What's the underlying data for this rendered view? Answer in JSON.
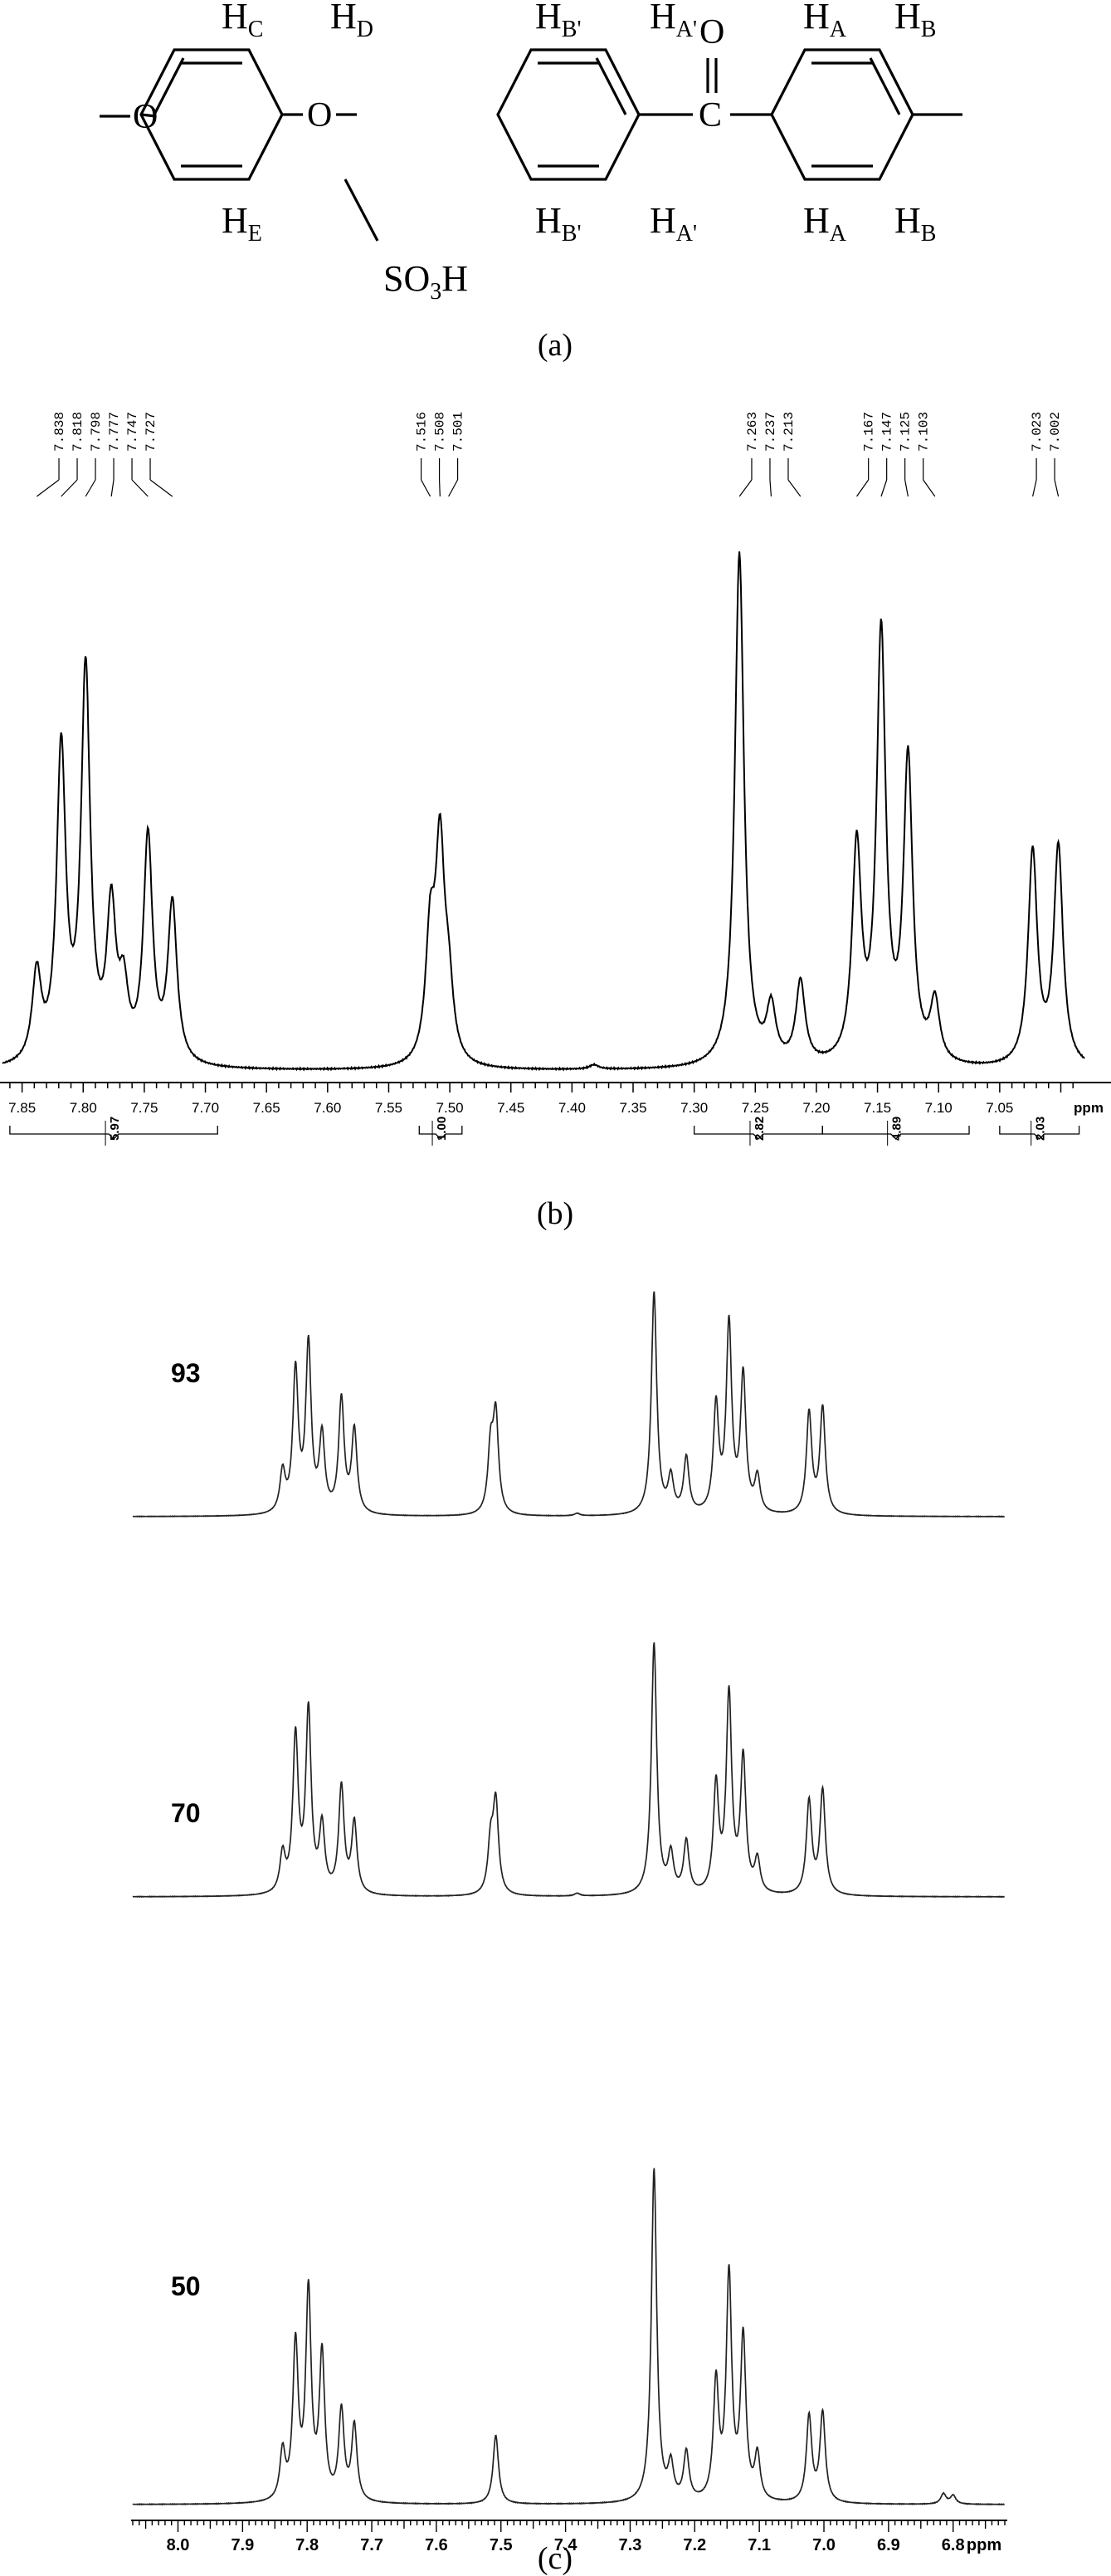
{
  "structure": {
    "labels": {
      "HC": {
        "main": "H",
        "sub": "C"
      },
      "HD": {
        "main": "H",
        "sub": "D"
      },
      "HE": {
        "main": "H",
        "sub": "E"
      },
      "HB_prime_top": {
        "main": "H",
        "sub": "B'"
      },
      "HA_prime_top": {
        "main": "H",
        "sub": "A'"
      },
      "HB_prime_bottom": {
        "main": "H",
        "sub": "B'"
      },
      "HA_prime_bottom": {
        "main": "H",
        "sub": "A'"
      },
      "HA_top": {
        "main": "H",
        "sub": "A"
      },
      "HB_top": {
        "main": "H",
        "sub": "B"
      },
      "HA_bottom": {
        "main": "H",
        "sub": "A"
      },
      "HB_bottom": {
        "main": "H",
        "sub": "B"
      },
      "O_ether_left": "O",
      "O_ether_mid": "O",
      "O_carbonyl": "O",
      "C_carbonyl": "C",
      "sulfonic": {
        "a": "SO",
        "sub": "3",
        "b": "H"
      }
    }
  },
  "panel_labels": {
    "a": "(a)",
    "b": "(b)",
    "c": "(c)"
  },
  "chart_data": [
    {
      "type": "line",
      "panel": "(b)",
      "xlabel": "ppm",
      "xlim": [
        7.85,
        6.99
      ],
      "x_reversed": true,
      "xticks": [
        7.85,
        7.8,
        7.75,
        7.7,
        7.65,
        7.6,
        7.55,
        7.5,
        7.45,
        7.4,
        7.35,
        7.3,
        7.25,
        7.2,
        7.15,
        7.1,
        7.05
      ],
      "xtick_labels": [
        "7.85",
        "7.80",
        "7.75",
        "7.70",
        "7.65",
        "7.60",
        "7.55",
        "7.50",
        "7.45",
        "7.40",
        "7.35",
        "7.30",
        "7.25",
        "7.20",
        "7.15",
        "7.10",
        "7.05"
      ],
      "peak_labels": [
        "7.838",
        "7.818",
        "7.798",
        "7.777",
        "7.747",
        "7.727",
        "7.516",
        "7.508",
        "7.501",
        "7.263",
        "7.237",
        "7.213",
        "7.167",
        "7.147",
        "7.125",
        "7.103",
        "7.023",
        "7.002"
      ],
      "peaks": [
        {
          "ppm": 7.838,
          "height": 0.16
        },
        {
          "ppm": 7.818,
          "height": 0.57
        },
        {
          "ppm": 7.798,
          "height": 0.71
        },
        {
          "ppm": 7.777,
          "height": 0.27
        },
        {
          "ppm": 7.767,
          "height": 0.12
        },
        {
          "ppm": 7.747,
          "height": 0.41
        },
        {
          "ppm": 7.727,
          "height": 0.29
        },
        {
          "ppm": 7.516,
          "height": 0.22
        },
        {
          "ppm": 7.508,
          "height": 0.38
        },
        {
          "ppm": 7.501,
          "height": 0.12
        },
        {
          "ppm": 7.382,
          "height": 0.008
        },
        {
          "ppm": 7.263,
          "height": 0.94
        },
        {
          "ppm": 7.237,
          "height": 0.1
        },
        {
          "ppm": 7.213,
          "height": 0.15
        },
        {
          "ppm": 7.167,
          "height": 0.39
        },
        {
          "ppm": 7.147,
          "height": 0.78
        },
        {
          "ppm": 7.125,
          "height": 0.55
        },
        {
          "ppm": 7.103,
          "height": 0.11
        },
        {
          "ppm": 7.023,
          "height": 0.39
        },
        {
          "ppm": 7.002,
          "height": 0.4
        }
      ],
      "linewidth_ppm": 0.0045,
      "integrals": [
        {
          "from": 7.86,
          "to": 7.69,
          "value": "5.97"
        },
        {
          "from": 7.525,
          "to": 7.49,
          "value": "1.00"
        },
        {
          "from": 7.3,
          "to": 7.195,
          "value": "2.82"
        },
        {
          "from": 7.195,
          "to": 7.075,
          "value": "4.89"
        },
        {
          "from": 7.05,
          "to": 6.985,
          "value": "2.03"
        }
      ]
    },
    {
      "type": "line",
      "panel": "(c)",
      "xlabel": "ppm",
      "xlim": [
        8.07,
        6.72
      ],
      "x_reversed": true,
      "xticks": [
        8.0,
        7.9,
        7.8,
        7.7,
        7.6,
        7.5,
        7.4,
        7.3,
        7.2,
        7.1,
        7.0,
        6.9,
        6.8
      ],
      "xtick_labels": [
        "8.0",
        "7.9",
        "7.8",
        "7.7",
        "7.6",
        "7.5",
        "7.4",
        "7.3",
        "7.2",
        "7.1",
        "7.0",
        "6.9",
        "6.8"
      ],
      "linewidth_ppm": 0.005,
      "series": [
        {
          "name": "93",
          "peaks": [
            {
              "ppm": 7.838,
              "height": 0.16
            },
            {
              "ppm": 7.818,
              "height": 0.56
            },
            {
              "ppm": 7.798,
              "height": 0.66
            },
            {
              "ppm": 7.777,
              "height": 0.3
            },
            {
              "ppm": 7.747,
              "height": 0.45
            },
            {
              "ppm": 7.727,
              "height": 0.33
            },
            {
              "ppm": 7.516,
              "height": 0.25
            },
            {
              "ppm": 7.508,
              "height": 0.38
            },
            {
              "ppm": 7.382,
              "height": 0.01
            },
            {
              "ppm": 7.263,
              "height": 0.88
            },
            {
              "ppm": 7.237,
              "height": 0.14
            },
            {
              "ppm": 7.213,
              "height": 0.22
            },
            {
              "ppm": 7.167,
              "height": 0.42
            },
            {
              "ppm": 7.147,
              "height": 0.74
            },
            {
              "ppm": 7.125,
              "height": 0.54
            },
            {
              "ppm": 7.103,
              "height": 0.14
            },
            {
              "ppm": 7.023,
              "height": 0.4
            },
            {
              "ppm": 7.002,
              "height": 0.42
            }
          ]
        },
        {
          "name": "70",
          "peaks": [
            {
              "ppm": 7.838,
              "height": 0.14
            },
            {
              "ppm": 7.818,
              "height": 0.57
            },
            {
              "ppm": 7.798,
              "height": 0.66
            },
            {
              "ppm": 7.777,
              "height": 0.24
            },
            {
              "ppm": 7.747,
              "height": 0.39
            },
            {
              "ppm": 7.727,
              "height": 0.26
            },
            {
              "ppm": 7.516,
              "height": 0.18
            },
            {
              "ppm": 7.508,
              "height": 0.33
            },
            {
              "ppm": 7.382,
              "height": 0.01
            },
            {
              "ppm": 7.263,
              "height": 0.92
            },
            {
              "ppm": 7.237,
              "height": 0.14
            },
            {
              "ppm": 7.213,
              "height": 0.19
            },
            {
              "ppm": 7.167,
              "height": 0.39
            },
            {
              "ppm": 7.147,
              "height": 0.72
            },
            {
              "ppm": 7.125,
              "height": 0.49
            },
            {
              "ppm": 7.103,
              "height": 0.12
            },
            {
              "ppm": 7.023,
              "height": 0.34
            },
            {
              "ppm": 7.002,
              "height": 0.38
            }
          ]
        },
        {
          "name": "50",
          "peaks": [
            {
              "ppm": 7.838,
              "height": 0.14
            },
            {
              "ppm": 7.818,
              "height": 0.45
            },
            {
              "ppm": 7.798,
              "height": 0.6
            },
            {
              "ppm": 7.777,
              "height": 0.42
            },
            {
              "ppm": 7.747,
              "height": 0.26
            },
            {
              "ppm": 7.727,
              "height": 0.22
            },
            {
              "ppm": 7.508,
              "height": 0.2
            },
            {
              "ppm": 7.263,
              "height": 0.97
            },
            {
              "ppm": 7.237,
              "height": 0.1
            },
            {
              "ppm": 7.213,
              "height": 0.14
            },
            {
              "ppm": 7.167,
              "height": 0.34
            },
            {
              "ppm": 7.147,
              "height": 0.65
            },
            {
              "ppm": 7.125,
              "height": 0.47
            },
            {
              "ppm": 7.103,
              "height": 0.13
            },
            {
              "ppm": 7.023,
              "height": 0.25
            },
            {
              "ppm": 7.002,
              "height": 0.26
            },
            {
              "ppm": 6.815,
              "height": 0.03
            },
            {
              "ppm": 6.8,
              "height": 0.025
            }
          ]
        }
      ]
    }
  ]
}
